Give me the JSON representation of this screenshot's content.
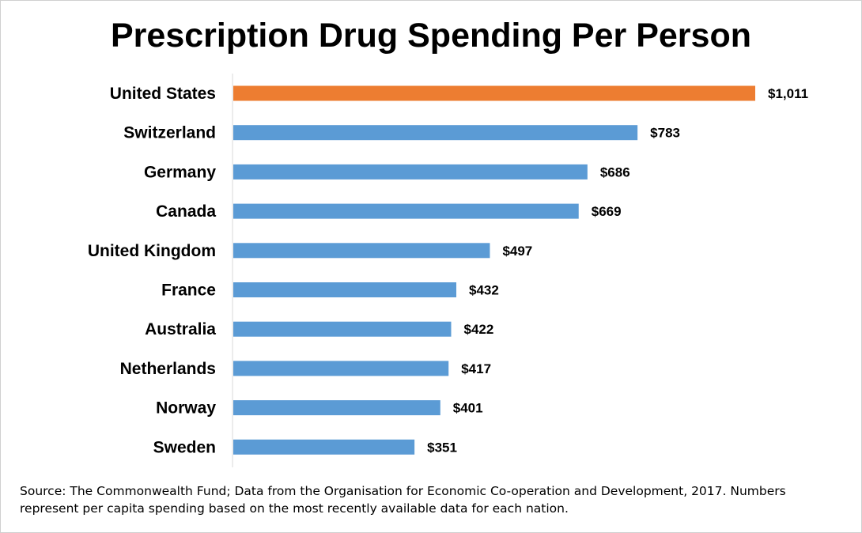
{
  "chart_data": {
    "type": "bar",
    "orientation": "horizontal",
    "title": "Prescription Drug Spending Per Person",
    "categories": [
      "United States",
      "Switzerland",
      "Germany",
      "Canada",
      "United Kingdom",
      "France",
      "Australia",
      "Netherlands",
      "Norway",
      "Sweden"
    ],
    "values": [
      1011,
      783,
      686,
      669,
      497,
      432,
      422,
      417,
      401,
      351
    ],
    "value_labels": [
      "$1,011",
      "$783",
      "$686",
      "$669",
      "$497",
      "$432",
      "$422",
      "$417",
      "$401",
      "$351"
    ],
    "xlim": [
      0,
      1011
    ],
    "grid": false,
    "legend": "none",
    "colors": {
      "highlight": "#ed7d31",
      "default": "#5b9bd5",
      "axis": "#d9d9d9"
    },
    "highlight_category": "United States"
  },
  "source_note": "Source: The Commonwealth Fund; Data from the Organisation for Economic Co-operation and Development, 2017. Numbers represent per capita spending based on the most recently available data for each nation."
}
